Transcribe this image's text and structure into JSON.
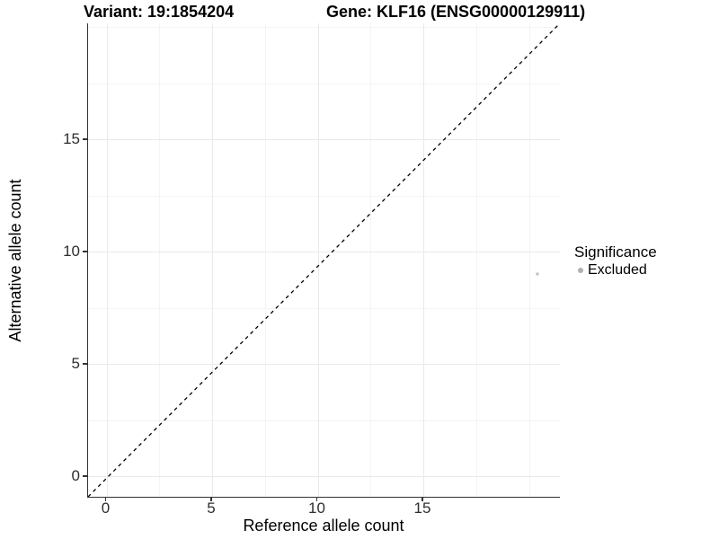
{
  "chart_data": {
    "type": "scatter",
    "title_left": "Variant: 19:1854204",
    "title_right": "Gene: KLF16 (ENSG00000129911)",
    "xlabel": "Reference allele count",
    "ylabel": "Alternative allele count",
    "x_ticks": [
      0,
      5,
      10,
      15
    ],
    "x_minor_ticks": [
      2.5,
      7.5,
      12.5,
      17.5,
      20
    ],
    "y_ticks": [
      0,
      5,
      10,
      15
    ],
    "y_minor_ticks": [
      2.5,
      7.5,
      12.5,
      17.5,
      20
    ],
    "xlim": [
      -0.9,
      21.5
    ],
    "ylim": [
      -0.9,
      20.2
    ],
    "grid": true,
    "reference_line": {
      "description": "y = x identity line",
      "style": "dashed",
      "color": "#000000"
    },
    "series": [
      {
        "name": "Excluded",
        "point_color": "#c4c4c4",
        "points": [
          {
            "x": 20.4,
            "y": 9
          }
        ]
      }
    ],
    "legend": {
      "title": "Significance",
      "position": "right",
      "items": [
        {
          "label": "Excluded",
          "color": "#b0b0b0"
        }
      ]
    },
    "colors": {
      "background": "#ffffff",
      "axis_line": "#333333",
      "grid_major": "#e9e9e9",
      "grid_minor": "#f4f4f4",
      "tick_text": "#2e2e2e",
      "title_text": "#000000"
    }
  }
}
